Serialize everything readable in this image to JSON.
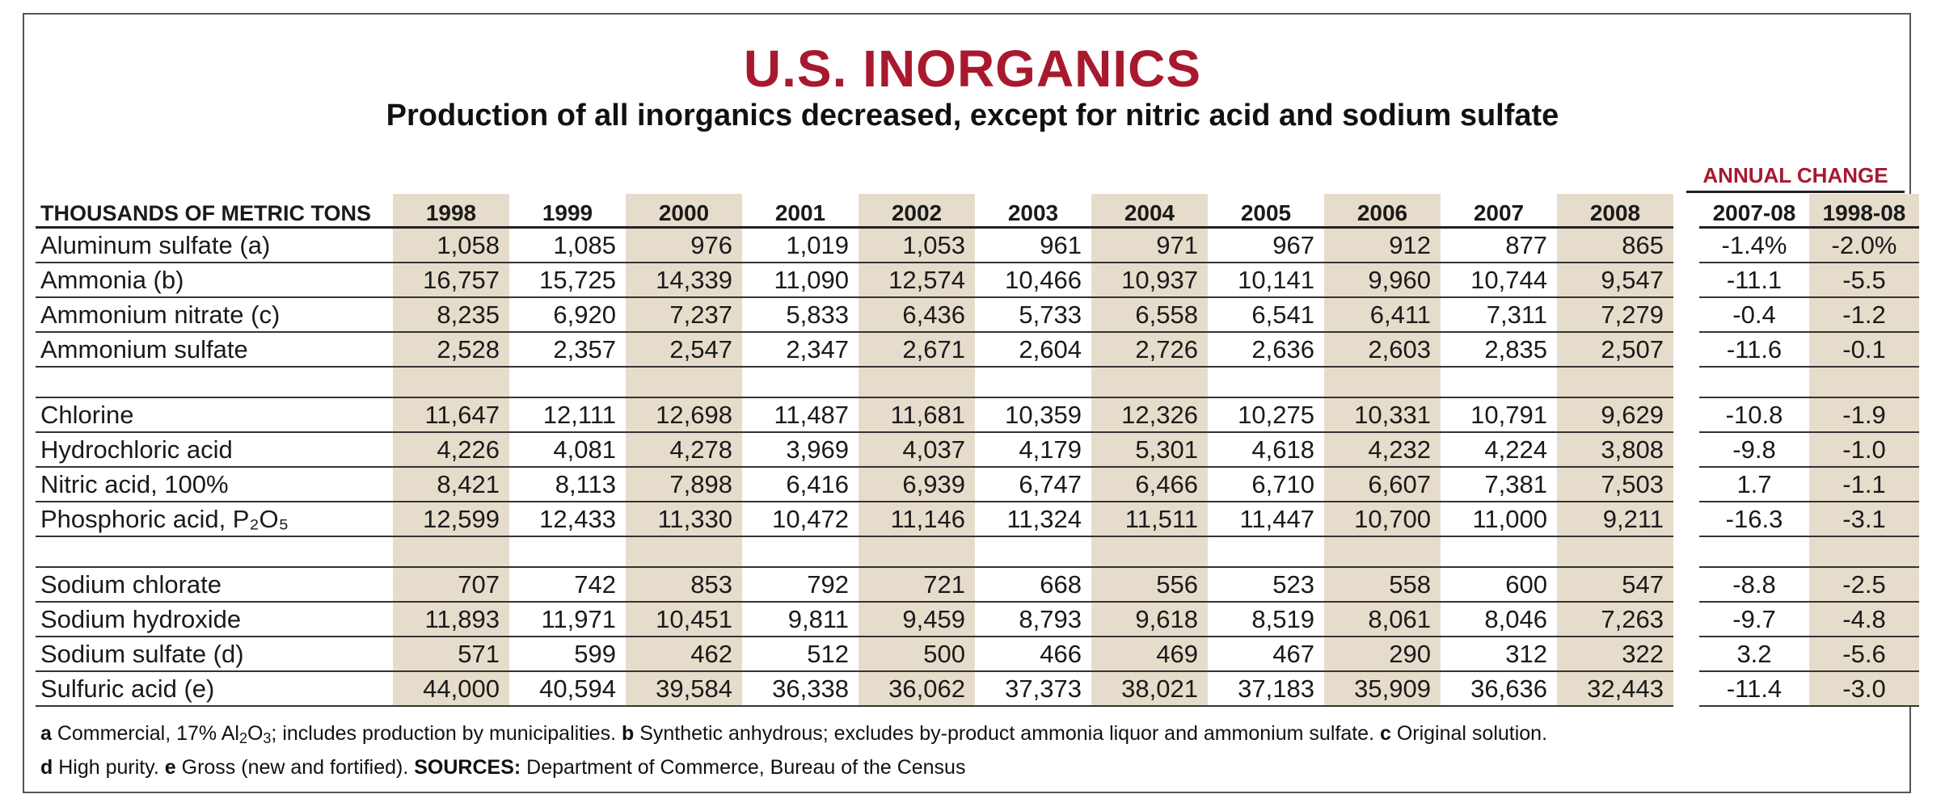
{
  "header": {
    "title": "U.S. INORGANICS",
    "subtitle": "Production of all inorganics decreased, except for nitric acid and sodium sulfate",
    "annual_change_label": "ANNUAL CHANGE"
  },
  "columns": {
    "units": "THOUSANDS OF METRIC TONS",
    "years": [
      "1998",
      "1999",
      "2000",
      "2001",
      "2002",
      "2003",
      "2004",
      "2005",
      "2006",
      "2007",
      "2008"
    ],
    "change": [
      "2007-08",
      "1998-08"
    ]
  },
  "chart_data": {
    "type": "table",
    "title": "U.S. INORGANICS",
    "subtitle": "Production of all inorganics decreased, except for nitric acid and sodium sulfate",
    "units": "THOUSANDS OF METRIC TONS",
    "columns": [
      "1998",
      "1999",
      "2000",
      "2001",
      "2002",
      "2003",
      "2004",
      "2005",
      "2006",
      "2007",
      "2008",
      "2007-08",
      "1998-08"
    ],
    "groups": [
      {
        "rows": [
          {
            "label": "Aluminum sulfate (a)",
            "values": [
              "1,058",
              "1,085",
              "976",
              "1,019",
              "1,053",
              "961",
              "971",
              "967",
              "912",
              "877",
              "865"
            ],
            "change": [
              "-1.4%",
              "-2.0%"
            ]
          },
          {
            "label": "Ammonia (b)",
            "values": [
              "16,757",
              "15,725",
              "14,339",
              "11,090",
              "12,574",
              "10,466",
              "10,937",
              "10,141",
              "9,960",
              "10,744",
              "9,547"
            ],
            "change": [
              "-11.1",
              "-5.5"
            ]
          },
          {
            "label": "Ammonium nitrate (c)",
            "values": [
              "8,235",
              "6,920",
              "7,237",
              "5,833",
              "6,436",
              "5,733",
              "6,558",
              "6,541",
              "6,411",
              "7,311",
              "7,279"
            ],
            "change": [
              "-0.4",
              "-1.2"
            ]
          },
          {
            "label": "Ammonium sulfate",
            "values": [
              "2,528",
              "2,357",
              "2,547",
              "2,347",
              "2,671",
              "2,604",
              "2,726",
              "2,636",
              "2,603",
              "2,835",
              "2,507"
            ],
            "change": [
              "-11.6",
              "-0.1"
            ]
          }
        ]
      },
      {
        "rows": [
          {
            "label": "Chlorine",
            "values": [
              "11,647",
              "12,111",
              "12,698",
              "11,487",
              "11,681",
              "10,359",
              "12,326",
              "10,275",
              "10,331",
              "10,791",
              "9,629"
            ],
            "change": [
              "-10.8",
              "-1.9"
            ]
          },
          {
            "label": "Hydrochloric acid",
            "values": [
              "4,226",
              "4,081",
              "4,278",
              "3,969",
              "4,037",
              "4,179",
              "5,301",
              "4,618",
              "4,232",
              "4,224",
              "3,808"
            ],
            "change": [
              "-9.8",
              "-1.0"
            ]
          },
          {
            "label": "Nitric acid, 100%",
            "values": [
              "8,421",
              "8,113",
              "7,898",
              "6,416",
              "6,939",
              "6,747",
              "6,466",
              "6,710",
              "6,607",
              "7,381",
              "7,503"
            ],
            "change": [
              "1.7",
              "-1.1"
            ]
          },
          {
            "label": "Phosphoric acid, P₂O₅",
            "values": [
              "12,599",
              "12,433",
              "11,330",
              "10,472",
              "11,146",
              "11,324",
              "11,511",
              "11,447",
              "10,700",
              "11,000",
              "9,211"
            ],
            "change": [
              "-16.3",
              "-3.1"
            ]
          }
        ]
      },
      {
        "rows": [
          {
            "label": "Sodium chlorate",
            "values": [
              "707",
              "742",
              "853",
              "792",
              "721",
              "668",
              "556",
              "523",
              "558",
              "600",
              "547"
            ],
            "change": [
              "-8.8",
              "-2.5"
            ]
          },
          {
            "label": "Sodium hydroxide",
            "values": [
              "11,893",
              "11,971",
              "10,451",
              "9,811",
              "9,459",
              "8,793",
              "9,618",
              "8,519",
              "8,061",
              "8,046",
              "7,263"
            ],
            "change": [
              "-9.7",
              "-4.8"
            ]
          },
          {
            "label": "Sodium sulfate (d)",
            "values": [
              "571",
              "599",
              "462",
              "512",
              "500",
              "466",
              "469",
              "467",
              "290",
              "312",
              "322"
            ],
            "change": [
              "3.2",
              "-5.6"
            ]
          },
          {
            "label": "Sulfuric acid (e)",
            "values": [
              "44,000",
              "40,594",
              "39,584",
              "36,338",
              "36,062",
              "37,373",
              "38,021",
              "37,183",
              "35,909",
              "36,636",
              "32,443"
            ],
            "change": [
              "-11.4",
              "-3.0"
            ]
          }
        ]
      }
    ]
  },
  "footer": {
    "line1": [
      {
        "b": "a",
        "t": " Commercial, 17% Al"
      },
      {
        "sub": "2"
      },
      {
        "t": "O"
      },
      {
        "sub": "3"
      },
      {
        "t": "; includes production by municipalities. "
      },
      {
        "b": "b",
        "t": " Synthetic anhydrous; excludes by-product ammonia liquor and ammonium sulfate. "
      },
      {
        "b": "c",
        "t": " Original solution."
      }
    ],
    "line2": [
      {
        "b": "d",
        "t": " High purity. "
      },
      {
        "b": "e",
        "t": " Gross (new and fortified). "
      },
      {
        "b": "SOURCES:",
        "t": " Department of Commerce, Bureau of the Census"
      }
    ]
  },
  "colors": {
    "title": "#a8192e",
    "shade": "#e6dccb",
    "rule": "#333333"
  }
}
